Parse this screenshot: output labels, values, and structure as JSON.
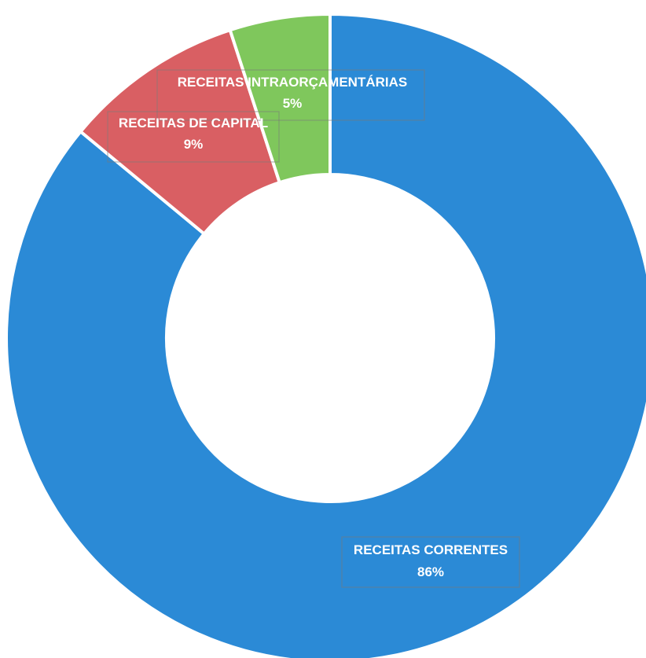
{
  "chart_data": {
    "type": "pie",
    "donut": true,
    "categories": [
      "RECEITAS CORRENTES",
      "RECEITAS DE CAPITAL",
      "RECEITAS INTRAORÇAMENTÁRIAS"
    ],
    "values": [
      86,
      9,
      5
    ],
    "value_labels": [
      "86%",
      "9%",
      "5%"
    ],
    "colors": [
      "#2b8ad6",
      "#d95f63",
      "#7fc75c"
    ],
    "legend": "none",
    "start_angle": "12 o'clock",
    "direction": "clockwise"
  }
}
